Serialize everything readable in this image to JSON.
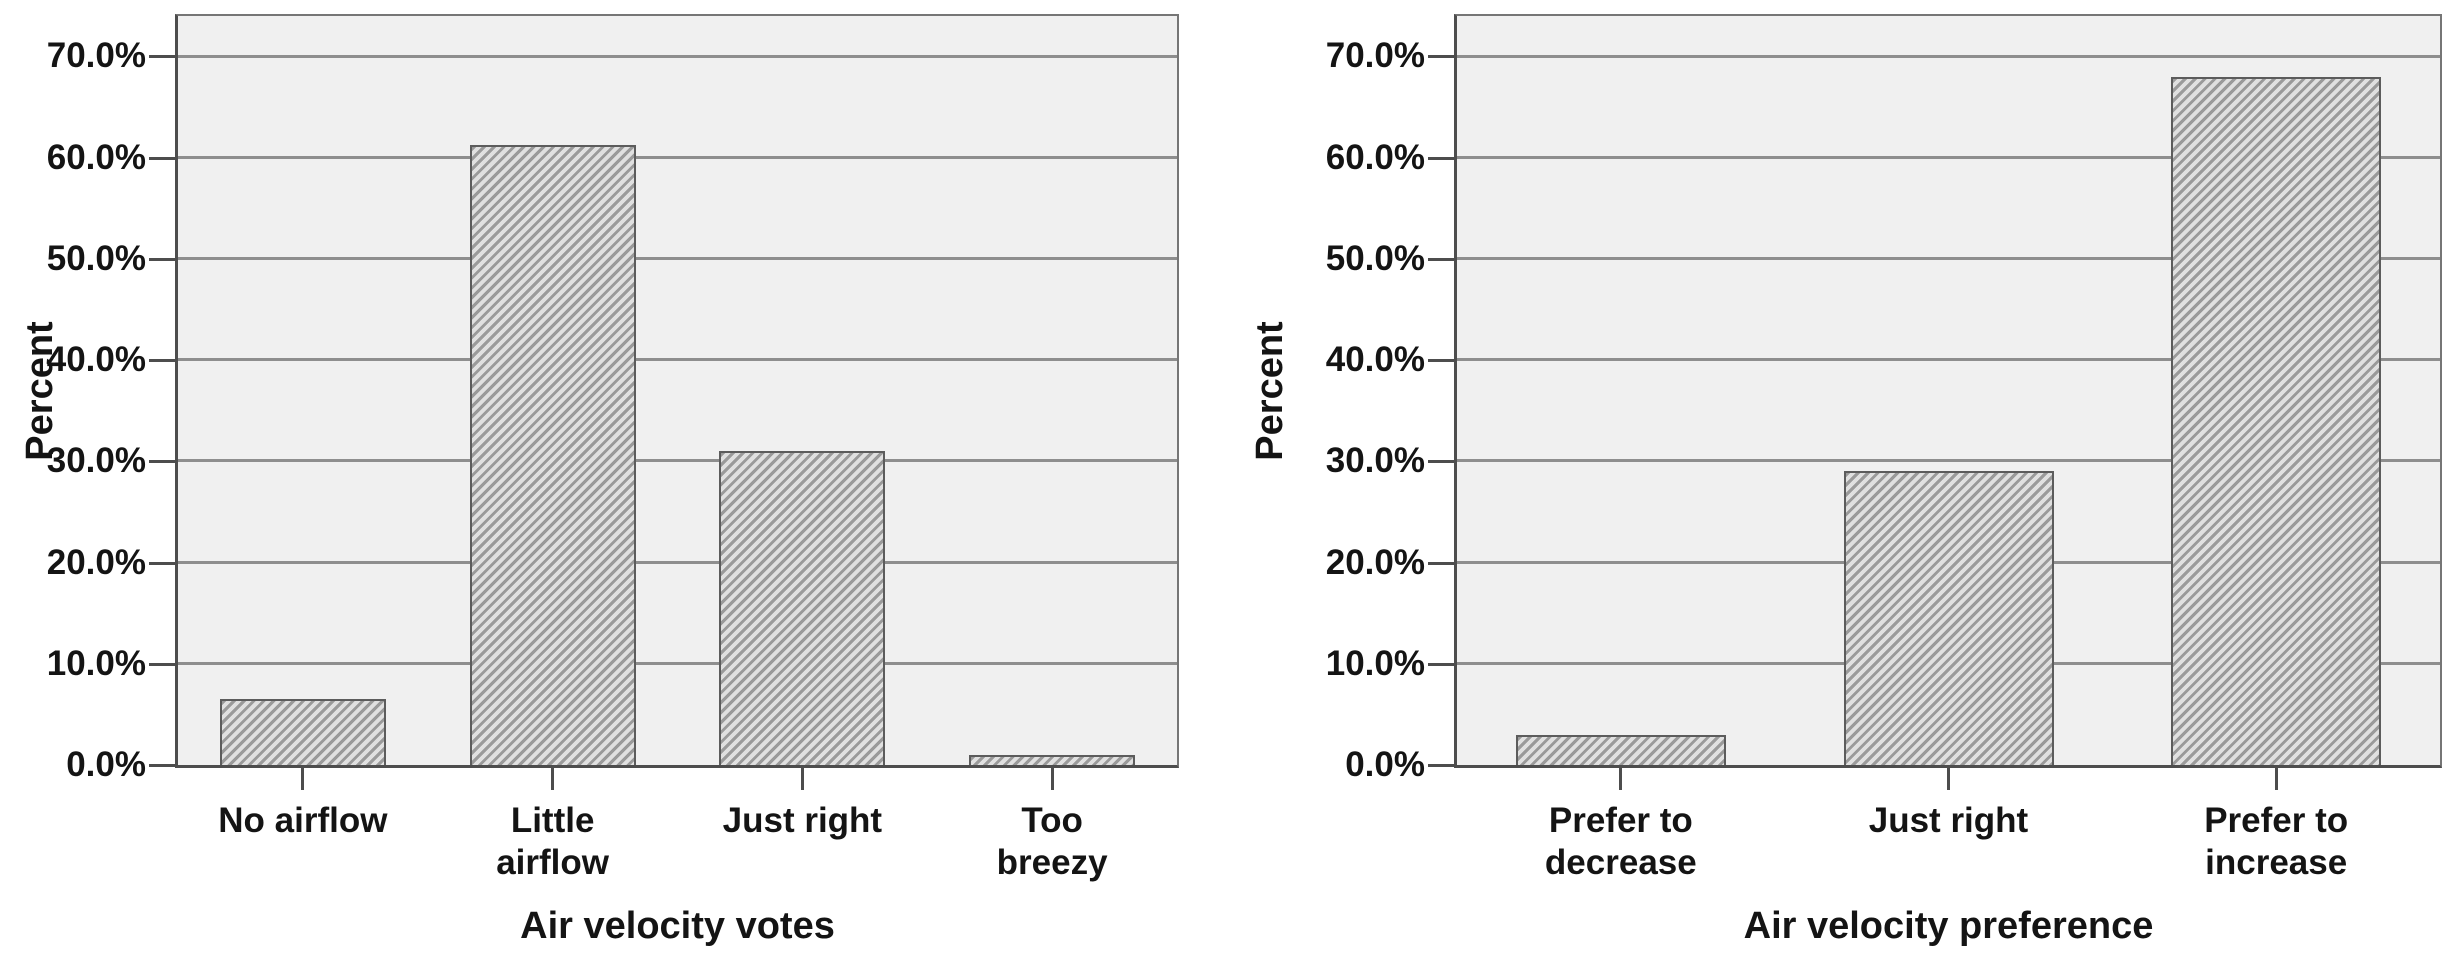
{
  "colors": {
    "page_bg": "#ffffff",
    "plot_bg": "#f0f0f0",
    "gridline": "#8e8e8e",
    "axis": "#4d4d4d",
    "frame": "#767676",
    "bar_border": "#5c5c5c",
    "bar_stripe_dark": "#9a9a9a",
    "bar_stripe_light": "#e0e0e0",
    "text": "#141414"
  },
  "charts": [
    {
      "y_axis": {
        "title": "Percent"
      },
      "x_axis": {
        "title": "Air velocity votes"
      },
      "category_display": [
        "No airflow",
        "Little\nairflow",
        "Just right",
        "Too\nbreezy"
      ]
    },
    {
      "y_axis": {
        "title": "Percent"
      },
      "x_axis": {
        "title": "Air velocity preference"
      },
      "category_display": [
        "Prefer to\ndecrease",
        "Just right",
        "Prefer to\nincrease"
      ]
    }
  ],
  "chart_data": [
    {
      "type": "bar",
      "title": "",
      "categories": [
        "No airflow",
        "Little airflow",
        "Just right",
        "Too breezy"
      ],
      "values": [
        6.5,
        61.3,
        31.0,
        1.0
      ],
      "xlabel": "Air velocity votes",
      "ylabel": "Percent",
      "ylim": [
        0,
        74
      ],
      "yticks": [
        0,
        10,
        20,
        30,
        40,
        50,
        60,
        70
      ],
      "ytick_labels": [
        "0.0%",
        "10.0%",
        "20.0%",
        "30.0%",
        "40.0%",
        "50.0%",
        "60.0%",
        "70.0%"
      ],
      "grid": true,
      "legend": false,
      "bar_fill": "diagonal-hatch"
    },
    {
      "type": "bar",
      "title": "",
      "categories": [
        "Prefer to decrease",
        "Just right",
        "Prefer to increase"
      ],
      "values": [
        3.0,
        29.0,
        68.0
      ],
      "xlabel": "Air velocity preference",
      "ylabel": "Percent",
      "ylim": [
        0,
        74
      ],
      "yticks": [
        0,
        10,
        20,
        30,
        40,
        50,
        60,
        70
      ],
      "ytick_labels": [
        "0.0%",
        "10.0%",
        "20.0%",
        "30.0%",
        "40.0%",
        "50.0%",
        "60.0%",
        "70.0%"
      ],
      "grid": true,
      "legend": false,
      "bar_fill": "diagonal-hatch"
    }
  ]
}
